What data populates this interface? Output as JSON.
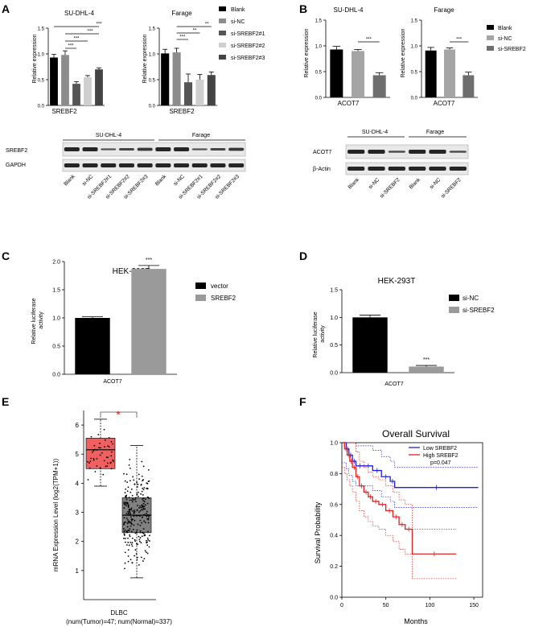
{
  "panels": {
    "A": {
      "letter": "A",
      "legend": [
        "Blank",
        "si-NC",
        "si-SREBF2#1",
        "si-SREBF2#2",
        "si-SREBF2#3"
      ],
      "ylabel": "Relative expression",
      "charts": [
        {
          "title": "SU-DHL-4",
          "xlabel": "SREBF2"
        },
        {
          "title": "Farage",
          "xlabel": "SREBF2"
        }
      ],
      "blot": {
        "groups": [
          "SU-DHL-4",
          "Farage"
        ],
        "rows": [
          "SREBF2",
          "GAPDH"
        ],
        "lanes": [
          "Blank",
          "si-NC",
          "si-SREBF2#1",
          "si-SREBF2#2",
          "si-SREBF2#3",
          "Blank",
          "si-NC",
          "si-SREBF2#1",
          "si-SREBF2#2",
          "si-SREBF2#3"
        ]
      }
    },
    "B": {
      "letter": "B",
      "legend": [
        "Blank",
        "si-NC",
        "si-SREBF2"
      ],
      "ylabel": "Relative expression",
      "charts": [
        {
          "title": "SU-DHL-4",
          "xlabel": "ACOT7"
        },
        {
          "title": "Farage",
          "xlabel": "ACOT7"
        }
      ],
      "blot": {
        "groups": [
          "SU-DHL-4",
          "Farage"
        ],
        "rows": [
          "ACOT7",
          "β-Actin"
        ],
        "lanes": [
          "Blank",
          "si-NC",
          "si-SREBF2",
          "Blank",
          "si-NC",
          "si-SREBF2"
        ]
      }
    },
    "C": {
      "letter": "C",
      "title": "HEK-293T",
      "ylabel": [
        "Relative luciferase",
        "activity"
      ],
      "xlabel": "ACOT7",
      "legend": [
        "vector",
        "SREBF2"
      ]
    },
    "D": {
      "letter": "D",
      "title": "HEK-293T",
      "ylabel": [
        "Relative luciferase",
        "activity"
      ],
      "xlabel": "ACOT7",
      "legend": [
        "si-NC",
        "si-SREBF2"
      ]
    },
    "E": {
      "letter": "E",
      "ylabel": "mRNA Expression Level (log2(TPM+1))",
      "xlabel": "DLBC",
      "note": "(num(Tumor)=47; num(Normal)=337)",
      "star": "*"
    },
    "F": {
      "letter": "F",
      "title": "Overall Survival",
      "ylabel": "Survival Probability",
      "xlabel": "Months",
      "legend": [
        "Low SREBF2",
        "High SREBF2"
      ],
      "pvalue": "p=0.047"
    }
  },
  "chart_data": [
    {
      "id": "A-SU-DHL-4",
      "type": "bar",
      "title": "SU-DHL-4",
      "xlabel": "SREBF2",
      "ylabel": "Relative expression",
      "ylim": [
        0,
        1.5
      ],
      "yticks": [
        "0.0",
        "0.5",
        "1.0",
        "1.5"
      ],
      "categories": [
        "Blank",
        "si-NC",
        "si-SREBF2#1",
        "si-SREBF2#2",
        "si-SREBF2#3"
      ],
      "values": [
        0.93,
        0.98,
        0.42,
        0.55,
        0.7
      ],
      "errors": [
        0.06,
        0.08,
        0.04,
        0.03,
        0.03
      ],
      "significance": [
        "***",
        "***",
        "***",
        "***"
      ]
    },
    {
      "id": "A-Farage",
      "type": "bar",
      "title": "Farage",
      "xlabel": "SREBF2",
      "ylabel": "Relative expression",
      "ylim": [
        0,
        1.5
      ],
      "yticks": [
        "0.0",
        "0.5",
        "1.0",
        "1.5"
      ],
      "categories": [
        "Blank",
        "si-NC",
        "si-SREBF2#1",
        "si-SREBF2#2",
        "si-SREBF2#3"
      ],
      "values": [
        1.01,
        1.03,
        0.45,
        0.5,
        0.59
      ],
      "errors": [
        0.08,
        0.08,
        0.16,
        0.1,
        0.06
      ],
      "significance": [
        "**",
        "**",
        "***"
      ]
    },
    {
      "id": "B-SU-DHL-4",
      "type": "bar",
      "title": "SU-DHL-4",
      "xlabel": "ACOT7",
      "ylabel": "Relative expression",
      "ylim": [
        0,
        1.5
      ],
      "yticks": [
        "0.0",
        "0.5",
        "1.0",
        "1.5"
      ],
      "categories": [
        "Blank",
        "si-NC",
        "si-SREBF2"
      ],
      "values": [
        0.93,
        0.9,
        0.43
      ],
      "errors": [
        0.06,
        0.03,
        0.05
      ],
      "significance": [
        "***"
      ]
    },
    {
      "id": "B-Farage",
      "type": "bar",
      "title": "Farage",
      "xlabel": "ACOT7",
      "ylabel": "Relative expression",
      "ylim": [
        0,
        1.5
      ],
      "yticks": [
        "0.0",
        "0.5",
        "1.0",
        "1.5"
      ],
      "categories": [
        "Blank",
        "si-NC",
        "si-SREBF2"
      ],
      "values": [
        0.91,
        0.93,
        0.43
      ],
      "errors": [
        0.06,
        0.03,
        0.06
      ],
      "significance": [
        "***"
      ]
    },
    {
      "id": "C",
      "type": "bar",
      "title": "HEK-293T",
      "xlabel": "ACOT7",
      "ylabel": "Relative luciferase activity",
      "ylim": [
        0,
        2.0
      ],
      "yticks": [
        "0.0",
        "0.5",
        "1.0",
        "1.5",
        "2.0"
      ],
      "categories": [
        "vector",
        "SREBF2"
      ],
      "values": [
        1.0,
        1.87
      ],
      "errors": [
        0.02,
        0.06
      ],
      "significance": [
        "***"
      ]
    },
    {
      "id": "D",
      "type": "bar",
      "title": "HEK-293T",
      "xlabel": "ACOT7",
      "ylabel": "Relative luciferase activity",
      "ylim": [
        0,
        1.5
      ],
      "yticks": [
        "0.0",
        "0.5",
        "1.0",
        "1.5"
      ],
      "categories": [
        "si-NC",
        "si-SREBF2"
      ],
      "values": [
        1.0,
        0.11
      ],
      "errors": [
        0.04,
        0.02
      ],
      "significance": [
        "***"
      ]
    },
    {
      "id": "E",
      "type": "box",
      "xlabel": "DLBC",
      "ylabel": "mRNA Expression Level (log2(TPM+1))",
      "ylim": [
        0,
        6.5
      ],
      "yticks": [
        "1",
        "2",
        "3",
        "4",
        "5",
        "6"
      ],
      "groups": [
        {
          "name": "Tumor",
          "n": 47,
          "q1": 4.5,
          "median": 5.15,
          "q3": 5.55,
          "whisker_low": 3.9,
          "whisker_high": 6.2,
          "color": "#f06060"
        },
        {
          "name": "Normal",
          "n": 337,
          "q1": 2.3,
          "median": 2.9,
          "q3": 3.5,
          "whisker_low": 0.75,
          "whisker_high": 5.3,
          "color": "#808080"
        }
      ]
    },
    {
      "id": "F",
      "type": "line",
      "title": "Overall Survival",
      "xlabel": "Months",
      "ylabel": "Survival Probability",
      "xlim": [
        0,
        160
      ],
      "ylim": [
        0,
        1.0
      ],
      "xticks": [
        "0",
        "50",
        "100",
        "150"
      ],
      "yticks": [
        "0.0",
        "0.2",
        "0.4",
        "0.6",
        "0.8",
        "1.0"
      ],
      "series": [
        {
          "name": "Low SREBF2",
          "color": "#1f1fdf",
          "x": [
            0,
            5,
            8,
            12,
            16,
            25,
            35,
            45,
            55,
            60,
            155
          ],
          "y": [
            1.0,
            0.96,
            0.92,
            0.88,
            0.85,
            0.85,
            0.82,
            0.78,
            0.75,
            0.71,
            0.71
          ]
        },
        {
          "name": "High SREBF2",
          "color": "#e02020",
          "x": [
            0,
            3,
            6,
            9,
            12,
            16,
            20,
            25,
            30,
            35,
            42,
            50,
            58,
            65,
            72,
            80,
            130
          ],
          "y": [
            1.0,
            0.96,
            0.92,
            0.88,
            0.84,
            0.78,
            0.72,
            0.68,
            0.65,
            0.62,
            0.6,
            0.56,
            0.52,
            0.47,
            0.44,
            0.28,
            0.28
          ]
        }
      ]
    }
  ]
}
